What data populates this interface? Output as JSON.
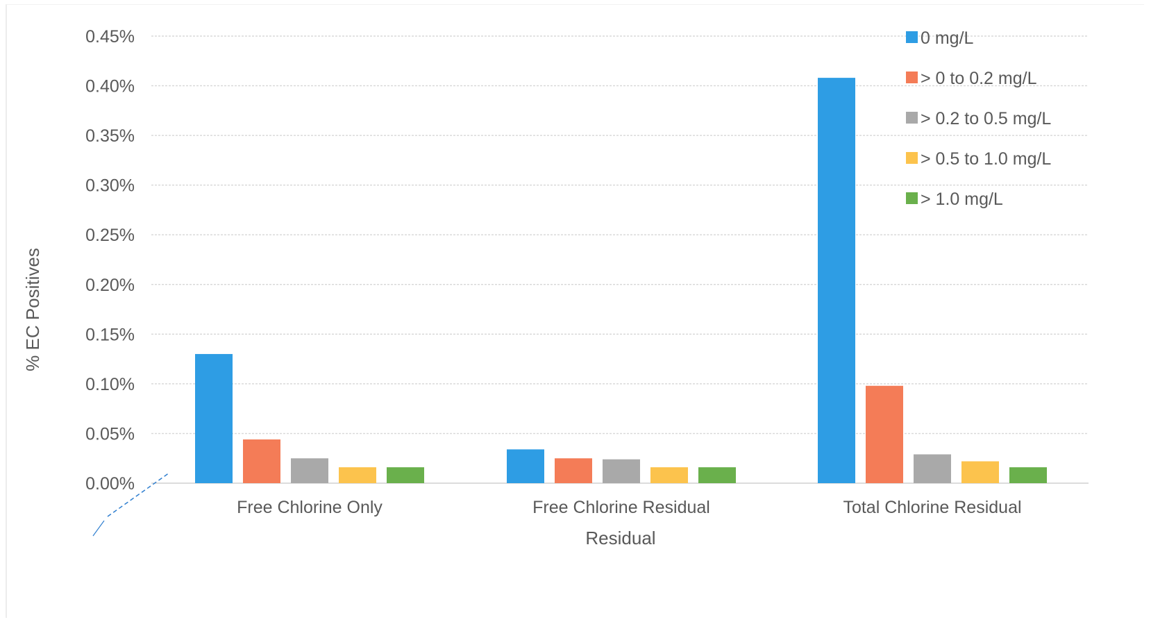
{
  "chart_data": {
    "type": "bar",
    "title": "",
    "xlabel": "Residual",
    "ylabel": "% EC Positives",
    "ylim": [
      0,
      0.45
    ],
    "y_ticks": [
      "0.00%",
      "0.05%",
      "0.10%",
      "0.15%",
      "0.20%",
      "0.25%",
      "0.30%",
      "0.35%",
      "0.40%",
      "0.45%"
    ],
    "y_tick_values": [
      0,
      0.05,
      0.1,
      0.15,
      0.2,
      0.25,
      0.3,
      0.35,
      0.4,
      0.45
    ],
    "categories": [
      "Free Chlorine Only",
      "Free Chlorine Residual",
      "Total Chlorine Residual"
    ],
    "series": [
      {
        "name": "0 mg/L",
        "color": "#2e9de4",
        "values": [
          0.13,
          0.034,
          0.408
        ]
      },
      {
        "name": "> 0 to 0.2 mg/L",
        "color": "#f47c57",
        "values": [
          0.044,
          0.025,
          0.098
        ]
      },
      {
        "name": "> 0.2 to 0.5 mg/L",
        "color": "#a9a9a9",
        "values": [
          0.025,
          0.024,
          0.029
        ]
      },
      {
        "name": "> 0.5 to 1.0 mg/L",
        "color": "#fcc34d",
        "values": [
          0.016,
          0.016,
          0.022
        ]
      },
      {
        "name": "> 1.0 mg/L",
        "color": "#6ab04c",
        "values": [
          0.016,
          0.016,
          0.016
        ]
      }
    ],
    "grid": true,
    "legend_position": "top-right"
  }
}
